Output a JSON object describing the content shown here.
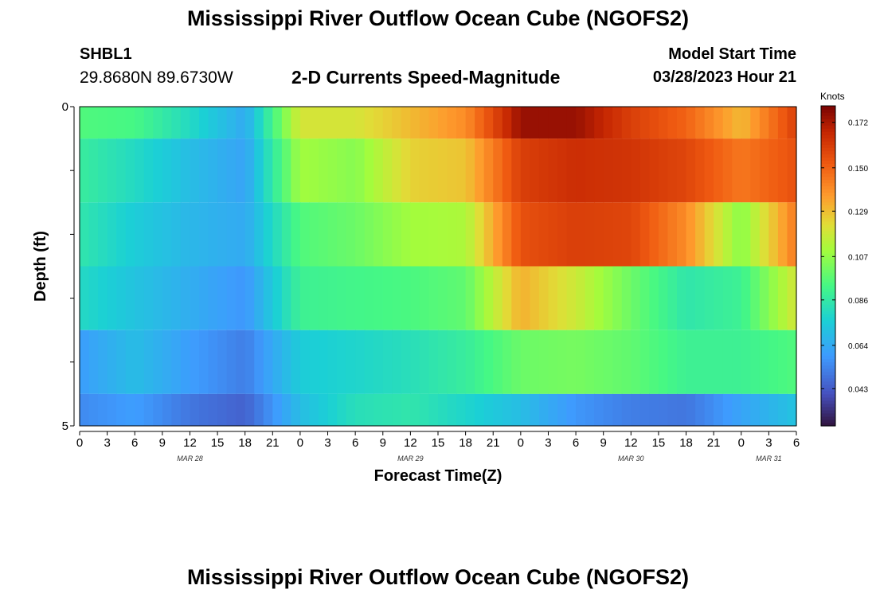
{
  "header": {
    "title": "Mississippi River Outflow Ocean Cube (NGOFS2)",
    "station_id": "SHBL1",
    "coords": "29.8680N  89.6730W",
    "subtitle": "2-D Currents Speed-Magnitude",
    "model_start_label": "Model Start Time",
    "model_start_value": "03/28/2023 Hour 21"
  },
  "footer": {
    "title": "Mississippi River Outflow Ocean Cube (NGOFS2)"
  },
  "chart_data": {
    "type": "heatmap",
    "title": "Mississippi River Outflow Ocean Cube (NGOFS2)",
    "subtitle": "2-D Currents Speed-Magnitude",
    "xlabel": "Forecast Time(Z)",
    "ylabel": "Depth (ft)",
    "xlim": [
      0,
      78
    ],
    "ylim": [
      0,
      5
    ],
    "y_tick_labels": [
      "0",
      "5"
    ],
    "x_tick_labels": [
      "0",
      "3",
      "6",
      "9",
      "12",
      "15",
      "18",
      "21",
      "0",
      "3",
      "6",
      "9",
      "12",
      "15",
      "18",
      "21",
      "0",
      "3",
      "6",
      "9",
      "12",
      "15",
      "18",
      "21",
      "0",
      "3",
      "6"
    ],
    "date_labels": [
      {
        "label": "MAR 28",
        "hour": 12
      },
      {
        "label": "MAR 29",
        "hour": 36
      },
      {
        "label": "MAR 30",
        "hour": 60
      },
      {
        "label": "MAR 31",
        "hour": 75
      }
    ],
    "colorbar": {
      "label": "Knots",
      "ticks": [
        "0.172",
        "0.150",
        "0.129",
        "0.107",
        "0.086",
        "0.064",
        "0.043"
      ],
      "min": 0.025,
      "max": 0.18,
      "tick_values": [
        0.172,
        0.15,
        0.129,
        0.107,
        0.086,
        0.064,
        0.043
      ]
    },
    "hours": [
      0,
      6,
      12,
      18,
      24,
      30,
      36,
      42,
      48,
      54,
      60,
      66,
      72,
      78
    ],
    "depth_layers": [
      {
        "depth": "0.0-0.5",
        "values": [
          0.095,
          0.093,
          0.08,
          0.064,
          0.12,
          0.12,
          0.13,
          0.14,
          0.175,
          0.175,
          0.16,
          0.15,
          0.13,
          0.16
        ]
      },
      {
        "depth": "0.5-1.5",
        "values": [
          0.088,
          0.08,
          0.07,
          0.062,
          0.11,
          0.105,
          0.125,
          0.128,
          0.16,
          0.165,
          0.163,
          0.158,
          0.145,
          0.155
        ]
      },
      {
        "depth": "1.5-2.5",
        "values": [
          0.085,
          0.075,
          0.068,
          0.064,
          0.095,
          0.1,
          0.11,
          0.112,
          0.155,
          0.16,
          0.158,
          0.14,
          0.105,
          0.145
        ]
      },
      {
        "depth": "2.5-3.5",
        "values": [
          0.08,
          0.072,
          0.065,
          0.058,
          0.09,
          0.092,
          0.094,
          0.098,
          0.132,
          0.118,
          0.1,
          0.085,
          0.09,
          0.12
        ]
      },
      {
        "depth": "3.5-4.5",
        "values": [
          0.06,
          0.07,
          0.06,
          0.052,
          0.075,
          0.078,
          0.082,
          0.088,
          0.1,
          0.102,
          0.098,
          0.09,
          0.09,
          0.095
        ]
      },
      {
        "depth": "4.5-5.0",
        "values": [
          0.055,
          0.06,
          0.05,
          0.045,
          0.07,
          0.082,
          0.085,
          0.078,
          0.07,
          0.058,
          0.052,
          0.05,
          0.062,
          0.072
        ]
      }
    ]
  }
}
